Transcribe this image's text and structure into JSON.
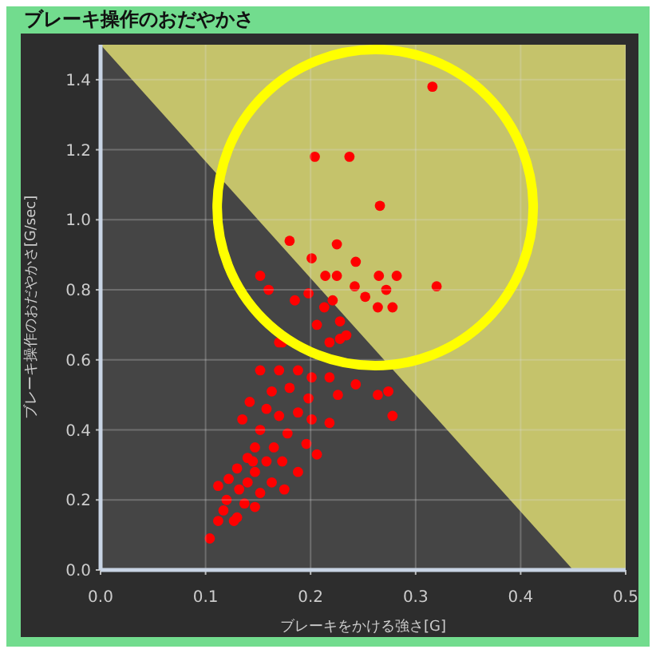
{
  "chart_data": {
    "type": "scatter",
    "title": "ブレーキ操作のおだやかさ",
    "xlabel": "ブレーキをかける強さ[G]",
    "ylabel": "ブレーキ操作のおだやかさ[G/sec]",
    "xlim": [
      0,
      0.5
    ],
    "ylim": [
      0,
      1.5
    ],
    "xticks": [
      {
        "value": 0,
        "label": "0.0"
      },
      0.1,
      0.2,
      0.3,
      0.4,
      0.5
    ],
    "yticks": [
      {
        "value": 0,
        "label": "0.0"
      },
      0.2,
      0.4,
      0.6,
      0.8,
      {
        "value": 1,
        "label": "1.0"
      },
      1.2,
      1.4
    ],
    "grid": true,
    "marker": "circle",
    "series": [
      {
        "type": "area",
        "marker": "none",
        "color": "#454545",
        "x": [
          0,
          0.45
        ],
        "values": [
          1.5,
          0
        ]
      },
      {
        "color": "#ff0000",
        "x": [
          0.316,
          0.204,
          0.237,
          0.266,
          0.18,
          0.225,
          0.201,
          0.243,
          0.214,
          0.225,
          0.265,
          0.282,
          0.242,
          0.272,
          0.32,
          0.252,
          0.264,
          0.278,
          0.152,
          0.16,
          0.185,
          0.198,
          0.221,
          0.213,
          0.206,
          0.228,
          0.234,
          0.218,
          0.17,
          0.228,
          0.173,
          0.152,
          0.17,
          0.188,
          0.201,
          0.218,
          0.243,
          0.264,
          0.274,
          0.226,
          0.278,
          0.163,
          0.18,
          0.198,
          0.142,
          0.158,
          0.135,
          0.17,
          0.188,
          0.201,
          0.218,
          0.152,
          0.178,
          0.196,
          0.206,
          0.147,
          0.165,
          0.14,
          0.158,
          0.173,
          0.13,
          0.147,
          0.188,
          0.122,
          0.14,
          0.163,
          0.112,
          0.132,
          0.152,
          0.175,
          0.12,
          0.137,
          0.117,
          0.13,
          0.112,
          0.104,
          0.127,
          0.147,
          0.145
        ],
        "values": [
          1.38,
          1.18,
          1.18,
          1.04,
          0.94,
          0.93,
          0.89,
          0.88,
          0.84,
          0.84,
          0.84,
          0.84,
          0.81,
          0.8,
          0.81,
          0.78,
          0.75,
          0.75,
          0.84,
          0.8,
          0.77,
          0.79,
          0.77,
          0.75,
          0.7,
          0.71,
          0.67,
          0.65,
          0.65,
          0.66,
          0.65,
          0.57,
          0.57,
          0.57,
          0.55,
          0.55,
          0.53,
          0.5,
          0.51,
          0.5,
          0.44,
          0.51,
          0.52,
          0.49,
          0.48,
          0.46,
          0.43,
          0.44,
          0.45,
          0.43,
          0.42,
          0.4,
          0.39,
          0.36,
          0.33,
          0.35,
          0.35,
          0.32,
          0.31,
          0.31,
          0.29,
          0.28,
          0.28,
          0.26,
          0.25,
          0.25,
          0.24,
          0.23,
          0.22,
          0.23,
          0.2,
          0.19,
          0.17,
          0.15,
          0.14,
          0.09,
          0.14,
          0.18,
          0.31
        ]
      }
    ]
  }
}
